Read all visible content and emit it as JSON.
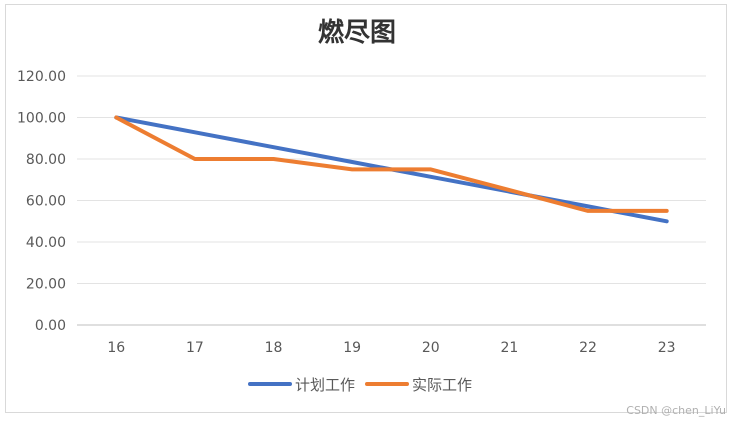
{
  "chart_data": {
    "type": "line",
    "title": "燃尽图",
    "x": [
      "16",
      "17",
      "18",
      "19",
      "20",
      "21",
      "22",
      "23"
    ],
    "ylim": [
      0,
      120
    ],
    "y_ticks": [
      "0.00",
      "20.00",
      "40.00",
      "60.00",
      "80.00",
      "100.00",
      "120.00"
    ],
    "grid": true,
    "legend_position": "bottom",
    "series": [
      {
        "name": "计划工作",
        "color": "#4472C4",
        "values": [
          100,
          92.86,
          85.71,
          78.57,
          71.43,
          64.29,
          57.14,
          50
        ]
      },
      {
        "name": "实际工作",
        "color": "#ED7D31",
        "values": [
          100,
          80,
          80,
          75,
          75,
          65,
          55,
          55
        ]
      }
    ]
  },
  "watermark": "CSDN @chen_LiYu"
}
